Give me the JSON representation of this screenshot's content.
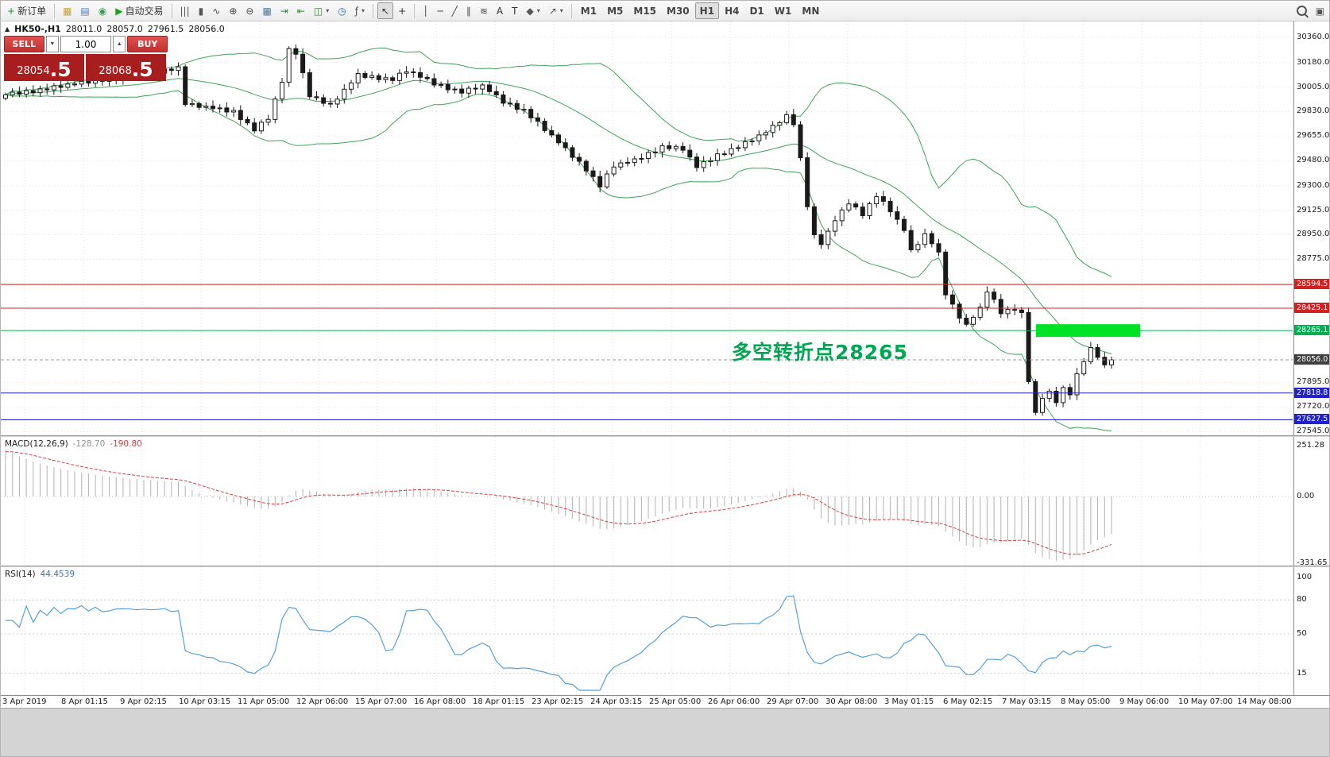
{
  "toolbar": {
    "groups": [
      {
        "type": "buttons",
        "items": [
          {
            "name": "new-order-button",
            "icon": "new-order-icon",
            "glyph": "+",
            "glyph_color": "#18922f",
            "label": "新订单"
          }
        ]
      },
      {
        "type": "sep"
      },
      {
        "type": "buttons",
        "items": [
          {
            "name": "market-watch-button",
            "icon": "market-watch-icon",
            "glyph": "▦",
            "glyph_color": "#c8a23a"
          },
          {
            "name": "data-window-button",
            "icon": "data-window-icon",
            "glyph": "▤",
            "glyph_color": "#4c7fc4"
          },
          {
            "name": "navigator-button",
            "icon": "navigator-icon",
            "glyph": "◉",
            "glyph_color": "#3e9e53"
          },
          {
            "name": "autotrading-button",
            "icon": "autotrading-play-icon",
            "glyph": "▶",
            "glyph_color": "#12a812",
            "label": "自动交易"
          }
        ]
      },
      {
        "type": "sep"
      },
      {
        "type": "buttons",
        "items": [
          {
            "name": "bar-chart-button",
            "icon": "bar-chart-icon",
            "glyph": "|||",
            "glyph_color": "#555555"
          },
          {
            "name": "candlestick-chart-button",
            "icon": "candlestick-chart-icon",
            "glyph": "▮",
            "glyph_color": "#555555"
          },
          {
            "name": "line-chart-button",
            "icon": "line-chart-icon",
            "glyph": "∿",
            "glyph_color": "#555555"
          },
          {
            "name": "zoom-in-button",
            "icon": "zoom-in-icon",
            "glyph": "⊕",
            "glyph_color": "#444444"
          },
          {
            "name": "zoom-out-button",
            "icon": "zoom-out-icon",
            "glyph": "⊖",
            "glyph_color": "#444444"
          },
          {
            "name": "grid-button",
            "icon": "grid-icon",
            "glyph": "▦",
            "glyph_color": "#557a9e"
          },
          {
            "name": "auto-scroll-button",
            "icon": "auto-scroll-icon",
            "glyph": "⇥",
            "glyph_color": "#2e8b3a"
          },
          {
            "name": "chart-shift-button",
            "icon": "chart-shift-icon",
            "glyph": "⇤",
            "glyph_color": "#2e8b3a"
          },
          {
            "name": "new-chart-button",
            "icon": "new-chart-icon",
            "glyph": "◫",
            "glyph_color": "#3a7a3a",
            "caret": true
          },
          {
            "name": "period-button",
            "icon": "clock-icon",
            "glyph": "◷",
            "glyph_color": "#3a6ab0"
          },
          {
            "name": "indicators-button",
            "icon": "indicators-icon",
            "glyph": "ƒ",
            "glyph_color": "#555555",
            "caret": true
          }
        ]
      },
      {
        "type": "sep"
      },
      {
        "type": "buttons",
        "items": [
          {
            "name": "cursor-button",
            "icon": "cursor-icon",
            "glyph": "↖",
            "glyph_color": "#333333",
            "active": true
          },
          {
            "name": "crosshair-button",
            "icon": "crosshair-icon",
            "glyph": "+",
            "glyph_color": "#333333"
          }
        ]
      },
      {
        "type": "sep"
      },
      {
        "type": "buttons",
        "items": [
          {
            "name": "vertical-line-button",
            "icon": "vertical-line-icon",
            "glyph": "│",
            "glyph_color": "#444444"
          },
          {
            "name": "horizontal-line-button",
            "icon": "horizontal-line-icon",
            "glyph": "─",
            "glyph_color": "#444444"
          },
          {
            "name": "trendline-button",
            "icon": "trendline-icon",
            "glyph": "╱",
            "glyph_color": "#444444"
          },
          {
            "name": "channel-button",
            "icon": "channel-icon",
            "glyph": "∥",
            "glyph_color": "#444444"
          },
          {
            "name": "fibonacci-button",
            "icon": "fibonacci-icon",
            "glyph": "≋",
            "glyph_color": "#444444"
          },
          {
            "name": "text-button",
            "icon": "text-icon",
            "glyph": "A",
            "glyph_color": "#333333"
          },
          {
            "name": "label-button",
            "icon": "label-icon",
            "glyph": "T",
            "glyph_color": "#333333"
          },
          {
            "name": "shapes-button",
            "icon": "shapes-icon",
            "glyph": "◆",
            "glyph_color": "#555555",
            "caret": true
          },
          {
            "name": "arrows-button",
            "icon": "arrows-icon",
            "glyph": "↗",
            "glyph_color": "#555555",
            "caret": true
          }
        ]
      },
      {
        "type": "sep"
      },
      {
        "type": "timeframes",
        "items": [
          {
            "name": "timeframe-m1-button",
            "label": "M1"
          },
          {
            "name": "timeframe-m5-button",
            "label": "M5"
          },
          {
            "name": "timeframe-m15-button",
            "label": "M15"
          },
          {
            "name": "timeframe-m30-button",
            "label": "M30"
          },
          {
            "name": "timeframe-h1-button",
            "label": "H1",
            "active": true
          },
          {
            "name": "timeframe-h4-button",
            "label": "H4"
          },
          {
            "name": "timeframe-d1-button",
            "label": "D1"
          },
          {
            "name": "timeframe-w1-button",
            "label": "W1"
          },
          {
            "name": "timeframe-mn-button",
            "label": "MN"
          }
        ]
      },
      {
        "type": "spacer"
      },
      {
        "type": "buttons",
        "items": [
          {
            "name": "search-button",
            "icon": "search-icon",
            "glyph": "mag"
          },
          {
            "name": "window-list-button",
            "icon": "window-list-icon",
            "glyph": "▣",
            "glyph_color": "#555555"
          }
        ]
      }
    ]
  },
  "icons": {
    "collapse": "▲",
    "spinner_down": "▼",
    "spinner_up": "▲"
  },
  "chart": {
    "info": {
      "symbol_tf": "HK50-,H1",
      "open": "28011.0",
      "high": "28057.0",
      "low": "27961.5",
      "close": "28056.0"
    },
    "one_click": {
      "sell_label": "SELL",
      "buy_label": "BUY",
      "volume": "1.00",
      "bid_main": "28054",
      "bid_big": ".5",
      "ask_main": "28068",
      "ask_big": ".5"
    },
    "annotation": {
      "text": "多空转折点28265",
      "color": "#00a651"
    },
    "levels": [
      {
        "price": 28594.5,
        "label": "28594.5",
        "color": "#d02020",
        "type": "resistance"
      },
      {
        "price": 28425.1,
        "label": "28425.1",
        "color": "#d02020",
        "type": "resistance"
      },
      {
        "price": 28265.1,
        "label": "28265.1",
        "color": "#00b050",
        "type": "pivot",
        "highlight": true
      },
      {
        "price": 28056.0,
        "label": "28056.0",
        "color": "#404040",
        "type": "bid"
      },
      {
        "price": 27818.8,
        "label": "27818.8",
        "color": "#2222cc",
        "type": "support"
      },
      {
        "price": 27627.5,
        "label": "27627.5",
        "color": "#2222cc",
        "type": "support"
      }
    ],
    "y_axis": [
      30360.0,
      30180.0,
      30005.0,
      29830.0,
      29655.0,
      29480.0,
      29300.0,
      29125.0,
      28950.0,
      28775.0,
      27895.0,
      27720.0,
      27545.0
    ],
    "hidden_grid": [
      28600,
      28425,
      28250,
      28075
    ]
  },
  "macd": {
    "label": "MACD(12,26,9)",
    "value1": "-128.70",
    "value2": "-190.80",
    "axis": [
      "251.28",
      "0.00",
      "-331.65"
    ],
    "axis_values": [
      251.28,
      0,
      -331.65
    ]
  },
  "rsi": {
    "label": "RSI(14)",
    "value": "44.4539",
    "axis": [
      "100",
      "80",
      "50",
      "15"
    ],
    "axis_values": [
      100,
      80,
      50,
      15
    ]
  },
  "chart_data": {
    "type": "candlestick",
    "symbol": "HK50-",
    "timeframe": "H1",
    "title": "HK50- H1 with Bollinger Bands(20,2), MACD(12,26,9), RSI(14)",
    "ylim": [
      27517,
      30474
    ],
    "levels_note": "resistance 28594.5 / 28425.1, pivot 28265.1 highlighted, bid 28056.0, support 27818.8 / 27627.5",
    "closes": [
      29950,
      29969,
      29954,
      29979,
      29965,
      29992,
      29985,
      30014,
      30003,
      30027,
      30026,
      30046,
      30033,
      30059,
      30046,
      30071,
      30062,
      30089,
      30074,
      30095,
      30090,
      30114,
      30104,
      30134,
      30124,
      30150,
      29880,
      29887,
      29860,
      29869,
      29851,
      29856,
      29827,
      29838,
      29773,
      29749,
      29692,
      29754,
      29774,
      29920,
      30040,
      30280,
      30240,
      30108,
      29936,
      29929,
      29889,
      29884,
      29919,
      29990,
      30035,
      30102,
      30074,
      30086,
      30058,
      30072,
      30052,
      30104,
      30114,
      30108,
      30075,
      30065,
      30020,
      30023,
      29986,
      29991,
      29962,
      29997,
      29991,
      30020,
      29973,
      29949,
      29890,
      29888,
      29846,
      29846,
      29785,
      29761,
      29694,
      29663,
      29607,
      29572,
      29503,
      29475,
      29406,
      29366,
      29292,
      29384,
      29434,
      29463,
      29467,
      29492,
      29495,
      29538,
      29541,
      29586,
      29565,
      29581,
      29554,
      29505,
      29430,
      29472,
      29480,
      29528,
      29526,
      29566,
      29572,
      29614,
      29621,
      29663,
      29680,
      29732,
      29750,
      29808,
      29736,
      29500,
      29150,
      28950,
      28880,
      28975,
      29050,
      29127,
      29170,
      29148,
      29086,
      29171,
      29222,
      29189,
      29114,
      29060,
      28980,
      28842,
      28880,
      28958,
      28886,
      28826,
      28520,
      28454,
      28354,
      28310,
      28360,
      28432,
      28540,
      28488,
      28386,
      28416,
      28412,
      28394,
      27900,
      27680,
      27780,
      27832,
      27750,
      27858,
      27806,
      27956,
      28042,
      28144,
      28074,
      28020,
      28056
    ],
    "time_labels": [
      "3 Apr 2019",
      "8 Apr 01:15",
      "9 Apr 02:15",
      "10 Apr 03:15",
      "11 Apr 05:00",
      "12 Apr 06:00",
      "15 Apr 07:00",
      "16 Apr 08:00",
      "18 Apr 01:15",
      "23 Apr 02:15",
      "24 Apr 03:15",
      "25 Apr 05:00",
      "26 Apr 06:00",
      "29 Apr 07:00",
      "30 Apr 08:00",
      "3 May 01:15",
      "6 May 02:15",
      "7 May 03:15",
      "8 May 05:00",
      "9 May 06:00",
      "10 May 07:00",
      "14 May 08:00"
    ]
  }
}
